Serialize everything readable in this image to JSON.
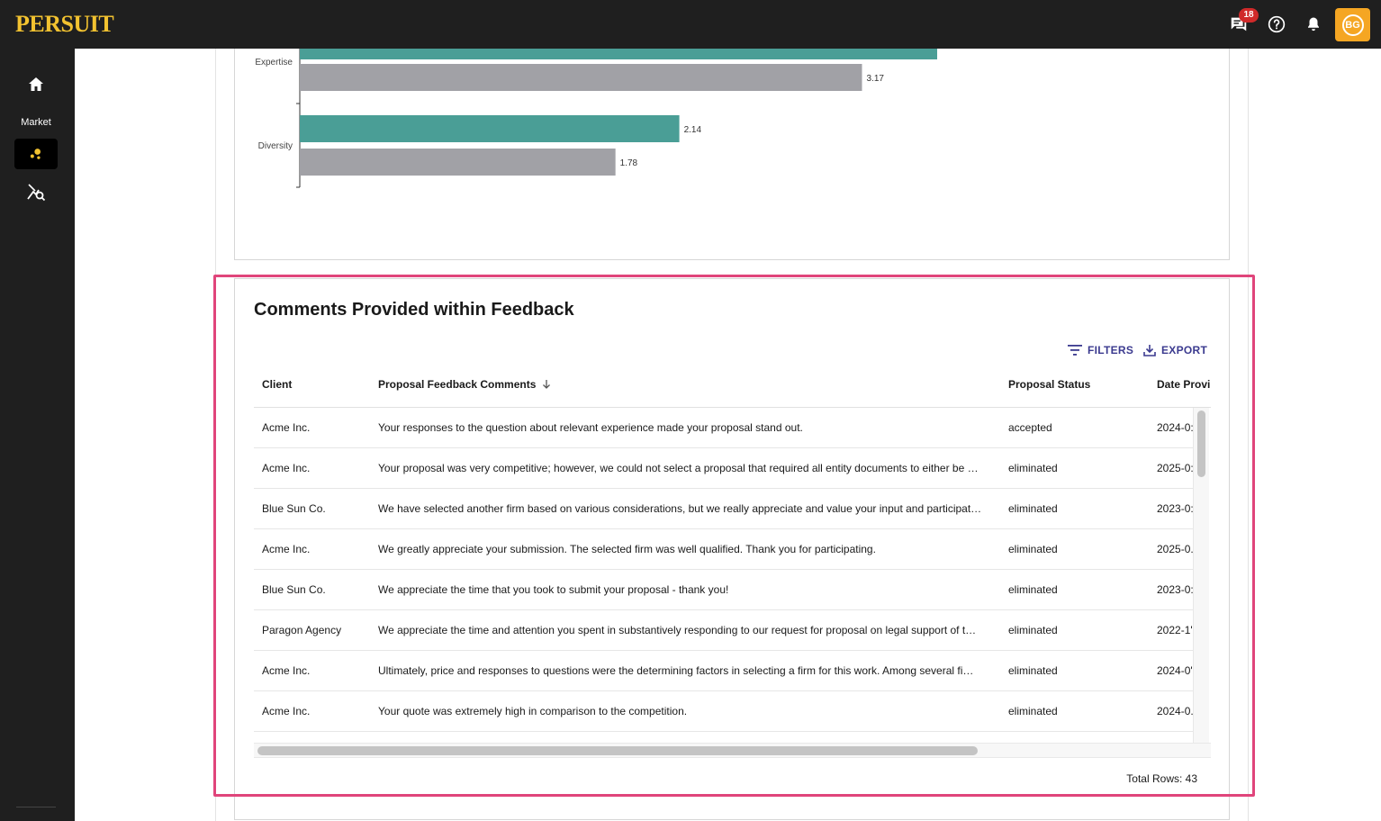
{
  "app": {
    "logo": "PERSUIT",
    "notification_count": "18",
    "avatar_initials": "BG"
  },
  "sidebar": {
    "market_label": "Market"
  },
  "chart_data": {
    "type": "bar",
    "orientation": "horizontal",
    "categories": [
      "Expertise",
      "Diversity"
    ],
    "series": [
      {
        "color": "#4a9e96",
        "values": [
          null,
          2.14
        ]
      },
      {
        "color": "#a1a1a6",
        "values": [
          3.17,
          1.78
        ]
      }
    ],
    "data_labels": [
      "3.17",
      "2.14",
      "1.78"
    ]
  },
  "comments": {
    "title": "Comments Provided within Feedback",
    "toolbar": {
      "filters_label": "FILTERS",
      "export_label": "EXPORT"
    },
    "headers": {
      "client": "Client",
      "comments": "Proposal Feedback Comments",
      "status": "Proposal Status",
      "date": "Date Provi"
    },
    "rows": [
      {
        "client": "Acme Inc.",
        "comment": "Your responses to the question about relevant experience made your proposal stand out.",
        "status": "accepted",
        "date": "2024-0:"
      },
      {
        "client": "Acme Inc.",
        "comment": "Your proposal was very competitive; however, we could not select a proposal that required all entity documents to either be …",
        "status": "eliminated",
        "date": "2025-0:"
      },
      {
        "client": "Blue Sun Co.",
        "comment": "We have selected another firm based on various considerations, but we really appreciate and value your input and participat…",
        "status": "eliminated",
        "date": "2023-0:"
      },
      {
        "client": "Acme Inc.",
        "comment": "We greatly appreciate your submission. The selected firm was well qualified. Thank you for participating.",
        "status": "eliminated",
        "date": "2025-0."
      },
      {
        "client": "Blue Sun Co.",
        "comment": "We appreciate the time that you took to submit your proposal - thank you!",
        "status": "eliminated",
        "date": "2023-0:"
      },
      {
        "client": "Paragon Agency",
        "comment": "We appreciate the time and attention you spent in substantively responding to our request for proposal on legal support of t…",
        "status": "eliminated",
        "date": "2022-1'"
      },
      {
        "client": "Acme Inc.",
        "comment": "Ultimately, price and responses to questions were the determining factors in selecting a firm for this work. Among several fi…",
        "status": "eliminated",
        "date": "2024-0'"
      },
      {
        "client": "Acme Inc.",
        "comment": "Your quote was extremely high in comparison to the competition.",
        "status": "eliminated",
        "date": "2024-0."
      }
    ],
    "total_rows_label": "Total Rows: 43"
  }
}
